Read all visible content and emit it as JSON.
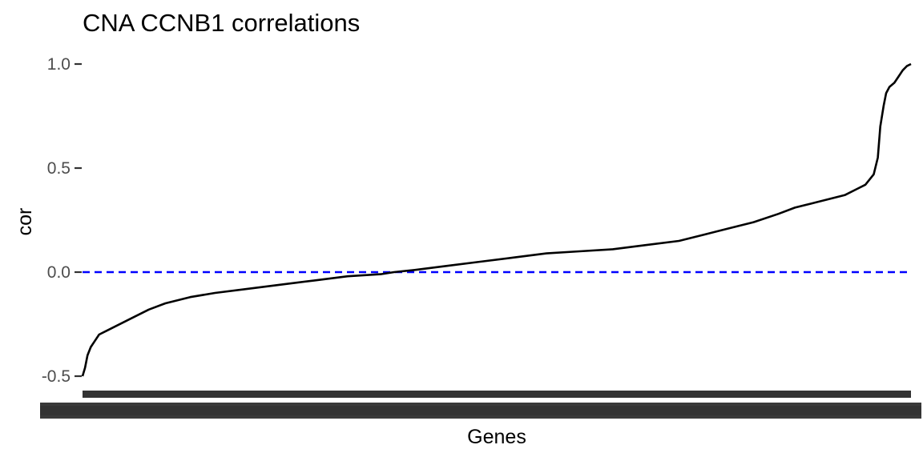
{
  "chart_data": {
    "type": "line",
    "title": "CNA CCNB1 correlations",
    "xlabel": "Genes",
    "ylabel": "cor",
    "ylim": [
      -0.55,
      1.02
    ],
    "yticks": [
      -0.5,
      0.0,
      0.5,
      1.0
    ],
    "ytick_labels": [
      "-0.5",
      "0.0",
      "0.5",
      "1.0"
    ],
    "grid": false,
    "x_tick_labels_overlapping": true,
    "reference_line": {
      "y": 0.0,
      "style": "dashed",
      "color": "#0000ff"
    },
    "line_color": "#000000",
    "series": [
      {
        "x_fraction": [
          0.0,
          0.003,
          0.006,
          0.01,
          0.015,
          0.02,
          0.03,
          0.04,
          0.06,
          0.08,
          0.1,
          0.13,
          0.16,
          0.2,
          0.24,
          0.28,
          0.32,
          0.36,
          0.376,
          0.4,
          0.44,
          0.48,
          0.52,
          0.56,
          0.6,
          0.64,
          0.68,
          0.72,
          0.75,
          0.78,
          0.81,
          0.84,
          0.86,
          0.88,
          0.9,
          0.92,
          0.935,
          0.945,
          0.955,
          0.96,
          0.963,
          0.967,
          0.97,
          0.974,
          0.98,
          0.985,
          0.99,
          0.995,
          1.0
        ],
        "y": [
          -0.5,
          -0.46,
          -0.4,
          -0.36,
          -0.33,
          -0.3,
          -0.28,
          -0.26,
          -0.22,
          -0.18,
          -0.15,
          -0.12,
          -0.1,
          -0.08,
          -0.06,
          -0.04,
          -0.02,
          -0.01,
          0.0,
          0.01,
          0.03,
          0.05,
          0.07,
          0.09,
          0.1,
          0.11,
          0.13,
          0.15,
          0.18,
          0.21,
          0.24,
          0.28,
          0.31,
          0.33,
          0.35,
          0.37,
          0.4,
          0.42,
          0.47,
          0.55,
          0.7,
          0.8,
          0.86,
          0.89,
          0.91,
          0.94,
          0.97,
          0.99,
          1.0
        ]
      }
    ]
  }
}
